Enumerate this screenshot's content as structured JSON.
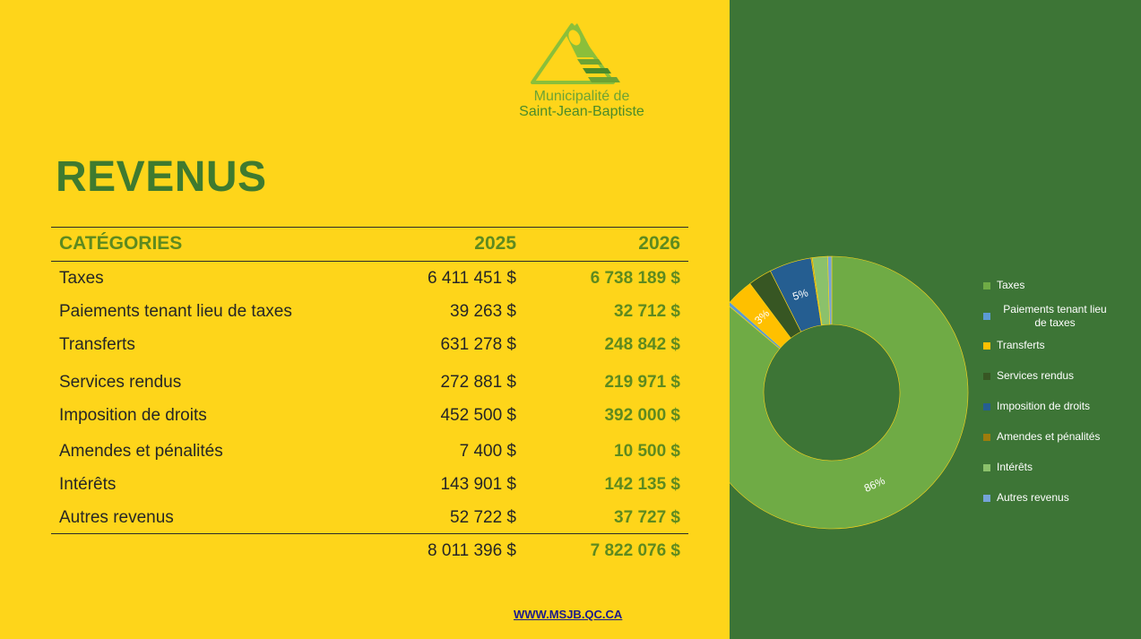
{
  "logo": {
    "line1": "Municipalité de",
    "line2": "Saint-Jean-Baptiste"
  },
  "title": "REVENUS",
  "table": {
    "headers": {
      "category": "CATÉGORIES",
      "y2025": "2025",
      "y2026": "2026"
    },
    "rows": [
      {
        "category": "Taxes",
        "y2025": "6 411 451 $",
        "y2026": "6 738 189 $"
      },
      {
        "category": "Paiements tenant lieu de taxes",
        "y2025": "39 263 $",
        "y2026": "32 712 $"
      },
      {
        "category": "Transferts",
        "y2025": "631 278 $",
        "y2026": "248 842 $"
      },
      {
        "category": "Services rendus",
        "y2025": "272 881 $",
        "y2026": "219 971 $"
      },
      {
        "category": "Imposition de droits",
        "y2025": "452 500 $",
        "y2026": "392 000 $"
      },
      {
        "category": "Amendes et pénalités",
        "y2025": "7 400 $",
        "y2026": "10 500 $"
      },
      {
        "category": "Intérêts",
        "y2025": "143 901 $",
        "y2026": "142 135 $"
      },
      {
        "category": "Autres revenus",
        "y2025": "52 722 $",
        "y2026": "37 727 $"
      }
    ],
    "total": {
      "y2025": "8 011 396 $",
      "y2026": "7 822 076 $"
    }
  },
  "website": "WWW.MSJB.QC.CA",
  "colors": {
    "left_bg": "#FED51A",
    "right_bg": "#3D7536",
    "accent_green": "#5E8A1F"
  },
  "chart_data": {
    "type": "pie",
    "donut": true,
    "legend_position": "right",
    "categories": [
      "Taxes",
      "Paiements tenant lieu de taxes",
      "Transferts",
      "Services rendus",
      "Imposition de droits",
      "Amendes et pénalités",
      "Intérêts",
      "Autres revenus"
    ],
    "values": [
      6738189,
      32712,
      248842,
      219971,
      392000,
      10500,
      142135,
      37727
    ],
    "colors": [
      "#6FAB45",
      "#5B9BD5",
      "#FFC000",
      "#375623",
      "#255E91",
      "#9E7C0C",
      "#8BC16B",
      "#75A3D8"
    ],
    "labels": [
      "86%",
      "",
      "3%",
      "",
      "5%",
      "",
      "",
      ""
    ]
  }
}
